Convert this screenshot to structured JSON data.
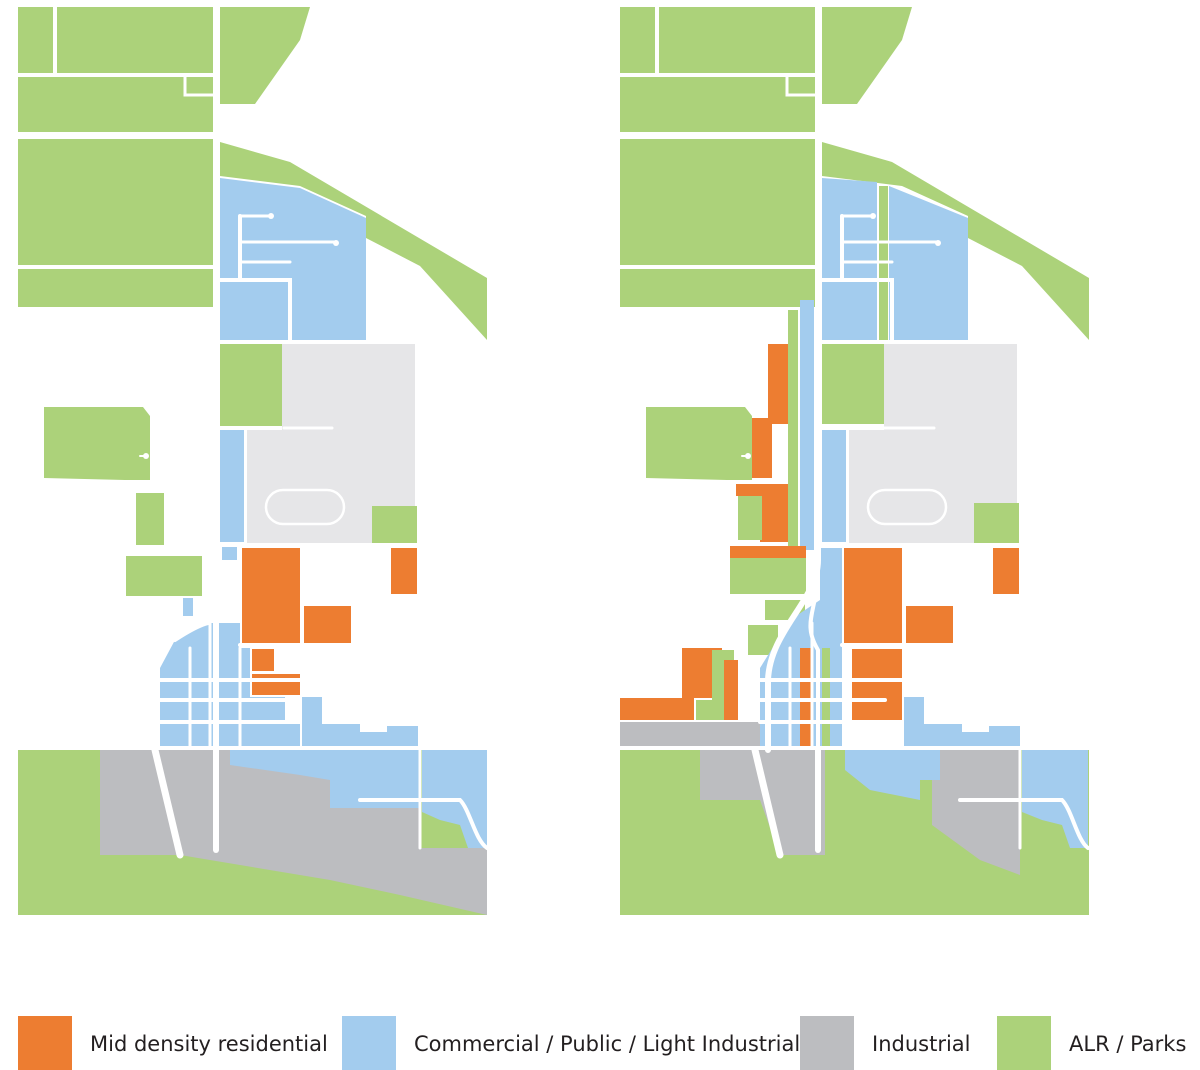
{
  "colors": {
    "residential": "#ed7d31",
    "commercial": "#a3ccee",
    "industrial": "#bcbdc0",
    "parks": "#acd27a",
    "site": "#e6e6e8",
    "road": "#ffffff"
  },
  "legend": [
    {
      "key": "residential",
      "label": "Mid density residential"
    },
    {
      "key": "commercial",
      "label": "Commercial / Public / Light Industrial"
    },
    {
      "key": "industrial",
      "label": "Industrial"
    },
    {
      "key": "parks",
      "label": "ALR / Parks"
    }
  ]
}
